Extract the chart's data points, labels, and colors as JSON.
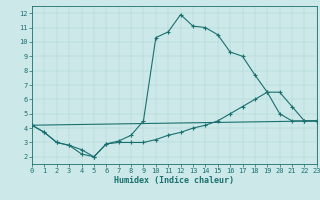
{
  "xlabel": "Humidex (Indice chaleur)",
  "bg_color": "#cce8e8",
  "line_color": "#1a7070",
  "xlim": [
    0,
    23
  ],
  "ylim": [
    1.5,
    12.5
  ],
  "yticks": [
    2,
    3,
    4,
    5,
    6,
    7,
    8,
    9,
    10,
    11,
    12
  ],
  "xticks": [
    0,
    1,
    2,
    3,
    4,
    5,
    6,
    7,
    8,
    9,
    10,
    11,
    12,
    13,
    14,
    15,
    16,
    17,
    18,
    19,
    20,
    21,
    22,
    23
  ],
  "series1_x": [
    0,
    1,
    2,
    3,
    4,
    5,
    6,
    7,
    8,
    9,
    10,
    11,
    12,
    13,
    14,
    15,
    16,
    17,
    18,
    19,
    20,
    21,
    22,
    23
  ],
  "series1_y": [
    4.2,
    3.7,
    3.0,
    2.8,
    2.2,
    2.0,
    2.9,
    3.1,
    3.5,
    4.5,
    10.3,
    10.7,
    11.9,
    11.1,
    11.0,
    10.5,
    9.3,
    9.0,
    7.7,
    6.5,
    5.0,
    4.5,
    4.5,
    4.5
  ],
  "series2_x": [
    0,
    1,
    2,
    3,
    4,
    5,
    6,
    7,
    8,
    9,
    10,
    11,
    12,
    13,
    14,
    15,
    16,
    17,
    18,
    19,
    20,
    21,
    22,
    23
  ],
  "series2_y": [
    4.2,
    3.7,
    3.0,
    2.8,
    2.5,
    2.0,
    2.9,
    3.0,
    3.0,
    3.0,
    3.2,
    3.5,
    3.7,
    4.0,
    4.2,
    4.5,
    5.0,
    5.5,
    6.0,
    6.5,
    6.5,
    5.5,
    4.5,
    4.5
  ],
  "series3_x": [
    0,
    23
  ],
  "series3_y": [
    4.2,
    4.5
  ],
  "xlabel_fontsize": 6.0,
  "tick_fontsize": 5.0,
  "linewidth": 0.8,
  "markersize": 3.0,
  "grid_color": "#aad0d0",
  "grid_linewidth": 0.3
}
